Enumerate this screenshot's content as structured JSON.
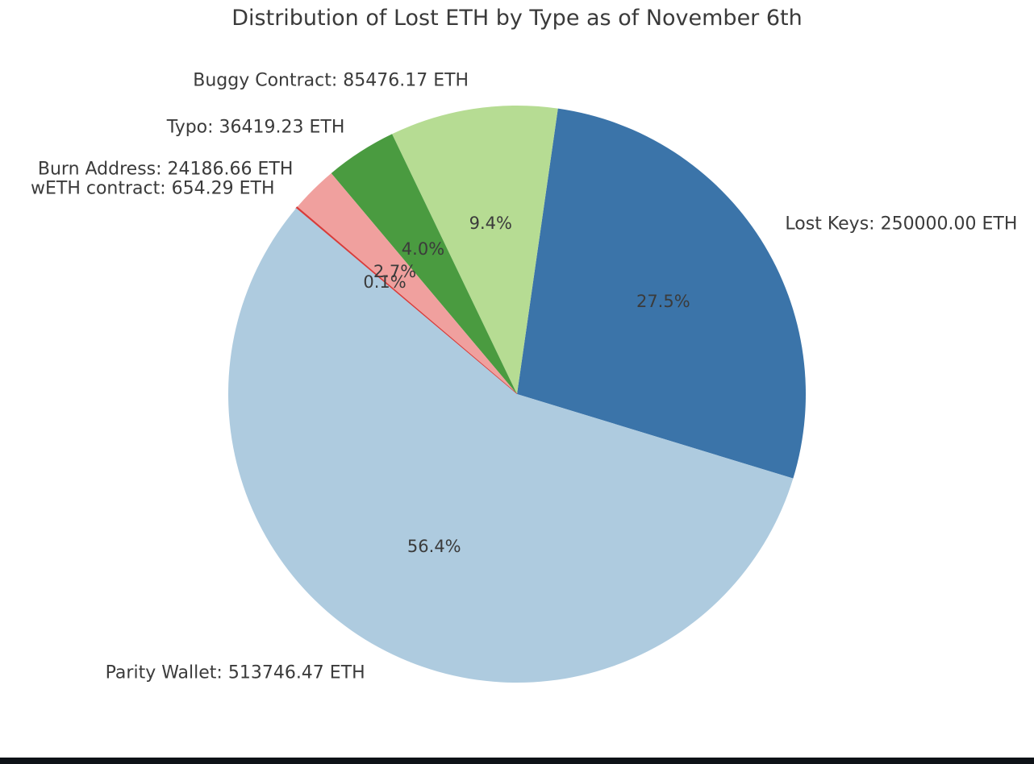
{
  "chart_data": {
    "type": "pie",
    "title": "Distribution of Lost ETH by Type as of November 6th",
    "unit": "ETH",
    "legend": "none",
    "layout": {
      "start_angle_deg": -17.0,
      "counterclockwise": true,
      "label_distance": 1.1,
      "pct_distance": 0.6
    },
    "slices": [
      {
        "label": "Lost Keys",
        "value": 250000.0,
        "pct": 27.5,
        "pct_label": "27.5%",
        "callout": "Lost Keys: 250000.00 ETH",
        "color": "#3b74a9"
      },
      {
        "label": "Buggy Contract",
        "value": 85476.17,
        "pct": 9.4,
        "pct_label": "9.4%",
        "callout": "Buggy Contract: 85476.17 ETH",
        "color": "#b6dc93"
      },
      {
        "label": "Typo",
        "value": 36419.23,
        "pct": 4.0,
        "pct_label": "4.0%",
        "callout": "Typo: 36419.23 ETH",
        "color": "#4a9b40"
      },
      {
        "label": "Burn Address",
        "value": 24186.66,
        "pct": 2.7,
        "pct_label": "2.7%",
        "callout": "Burn Address: 24186.66 ETH",
        "color": "#f0a09e"
      },
      {
        "label": "wETH contract",
        "value": 654.29,
        "pct": 0.1,
        "pct_label": "0.1%",
        "callout": "wETH contract: 654.29 ETH",
        "color": "#d83c3a"
      },
      {
        "label": "Parity Wallet",
        "value": 513746.47,
        "pct": 56.4,
        "pct_label": "56.4%",
        "callout": "Parity Wallet: 513746.47 ETH",
        "color": "#aecbdf"
      }
    ]
  },
  "colors": {
    "background": "#ffffff",
    "text": "#3b3b3b",
    "title_text": "#3a3a3a"
  },
  "footer": {
    "bar_color": "#0e1217"
  }
}
